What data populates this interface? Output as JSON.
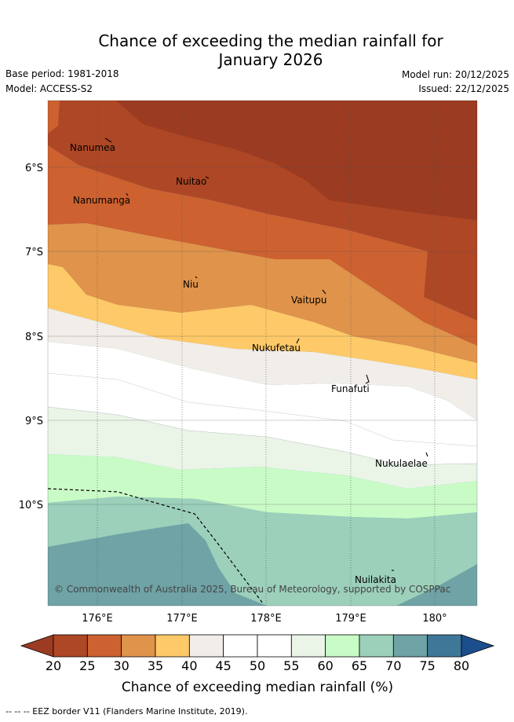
{
  "title": "Chance of exceeding the median rainfall for January 2026",
  "title_line1": "Chance of exceeding the median rainfall for",
  "title_line2": "January 2026",
  "base_period": "Base period: 1981-2018",
  "model": "Model: ACCESS-S2",
  "model_run": "Model run: 20/12/2025",
  "issued": "Issued: 22/12/2025",
  "latitude_labels": [
    "6°S",
    "7°S",
    "8°S",
    "9°S",
    "10°S"
  ],
  "longitude_labels": [
    "176°E",
    "177°E",
    "178°E",
    "179°E",
    "180°"
  ],
  "places": [
    "Nanumea",
    "Nuitao",
    "Nanumanga",
    "Niu",
    "Vaitupu",
    "Nukufetau",
    "Funafuti",
    "Nukulaelae",
    "Nuilakita"
  ],
  "copyright": "© Commonwealth of Australia 2025, Bureau of Meteorology, supported by COSPPac",
  "colorbar": {
    "ticks": [
      "20",
      "25",
      "30",
      "35",
      "40",
      "45",
      "50",
      "55",
      "60",
      "65",
      "70",
      "75",
      "80"
    ],
    "colors": [
      "#ae4725",
      "#cd6130",
      "#e0934a",
      "#fec968",
      "#f1ede8",
      "#ffffff",
      "#ffffff",
      "#eaf5e8",
      "#c9fbc6",
      "#9cd0bb",
      "#6fa3a6",
      "#3f7799"
    ],
    "under_color": "#9a3b22",
    "over_color": "#1c4e8c",
    "title": "Chance of exceeding median rainfall (%)"
  },
  "eez_note": "-- -- -- EEZ border V11 (Flanders Marine Institute, 2019)."
}
